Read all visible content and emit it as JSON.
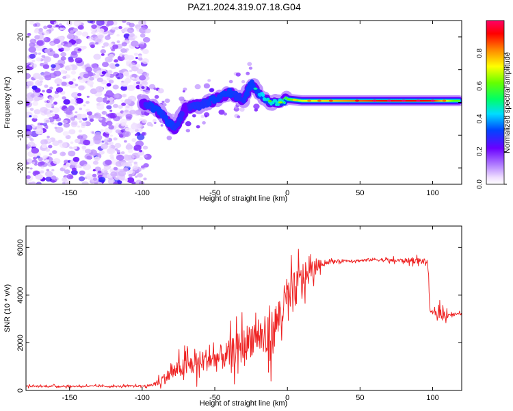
{
  "page_title": "PAZ1.2024.319.07.18.G04",
  "chart_data": [
    {
      "type": "heatmap",
      "title": "PAZ1.2024.319.07.18.G04",
      "xlabel": "Height of straight line (km)",
      "ylabel": "Frequency (Hz)",
      "xlim": [
        -180,
        120
      ],
      "ylim": [
        -25,
        25
      ],
      "x_ticks": [
        -150,
        -100,
        -50,
        0,
        50,
        100
      ],
      "y_ticks": [
        -20,
        -10,
        0,
        10,
        20
      ],
      "grid": false,
      "colorbar": {
        "label": "Normalized spectral amplitude",
        "range": [
          0,
          1
        ],
        "ticks": [
          "0.0",
          "0.2",
          "0.4",
          "0.6",
          "0.8"
        ],
        "colormap": "rainbow"
      },
      "ridge": {
        "x": [
          -100,
          -95,
          -90,
          -85,
          -80,
          -78,
          -75,
          -70,
          -65,
          -60,
          -55,
          -50,
          -45,
          -40,
          -35,
          -30,
          -25,
          -20,
          -15,
          -10,
          -5,
          0,
          10,
          25,
          50,
          75,
          100,
          115
        ],
        "frequency": [
          0,
          -1,
          -2,
          -4,
          -7,
          -8,
          -6,
          -2,
          -1,
          -1,
          0,
          1,
          2,
          3,
          2,
          1,
          6,
          3,
          1,
          0,
          0,
          1,
          0.5,
          0.5,
          0.5,
          0.5,
          0.5,
          0.5
        ],
        "amplitude": [
          0.25,
          0.3,
          0.35,
          0.3,
          0.35,
          0.3,
          0.3,
          0.25,
          0.3,
          0.3,
          0.3,
          0.35,
          0.35,
          0.35,
          0.3,
          0.3,
          0.35,
          0.4,
          0.45,
          0.5,
          0.55,
          0.6,
          0.7,
          0.75,
          0.85,
          0.95,
          0.9,
          0.6
        ]
      },
      "noise_region_x": [
        -180,
        -100
      ],
      "noise_dominant_amplitude": 0.05
    },
    {
      "type": "line",
      "xlabel": "Height of straight line (km)",
      "ylabel": "SNR (10 * v/v)",
      "xlim": [
        -180,
        120
      ],
      "ylim": [
        0,
        6900
      ],
      "x_ticks": [
        -150,
        -100,
        -50,
        0,
        50,
        100
      ],
      "y_ticks": [
        0,
        2000,
        4000,
        6000
      ],
      "grid": false,
      "series": [
        {
          "color": "#ee2222",
          "x": [
            -180,
            -170,
            -160,
            -150,
            -140,
            -130,
            -120,
            -110,
            -100,
            -95,
            -90,
            -85,
            -80,
            -75,
            -70,
            -65,
            -60,
            -55,
            -50,
            -45,
            -40,
            -35,
            -30,
            -25,
            -20,
            -15,
            -10,
            -5,
            0,
            5,
            10,
            15,
            20,
            25,
            30,
            40,
            50,
            60,
            70,
            80,
            90,
            95,
            97,
            98,
            100,
            105,
            110,
            115,
            120
          ],
          "y": [
            180,
            170,
            180,
            170,
            180,
            175,
            170,
            180,
            190,
            200,
            300,
            500,
            700,
            900,
            1000,
            1100,
            1200,
            1300,
            1300,
            1400,
            1500,
            1700,
            1900,
            2200,
            2400,
            2000,
            2500,
            3200,
            3800,
            4200,
            4700,
            4900,
            5200,
            5350,
            5400,
            5450,
            5450,
            5500,
            5450,
            5450,
            5450,
            5400,
            5300,
            3300,
            3250,
            3250,
            3200,
            3200,
            3200
          ],
          "noise_amplitude": [
            60,
            60,
            60,
            60,
            60,
            60,
            60,
            60,
            60,
            80,
            200,
            400,
            500,
            600,
            700,
            800,
            800,
            800,
            900,
            900,
            1000,
            1100,
            1200,
            1300,
            1400,
            1500,
            1600,
            1500,
            1500,
            1300,
            1200,
            700,
            500,
            150,
            120,
            100,
            100,
            110,
            120,
            150,
            200,
            200,
            200,
            100,
            100,
            400,
            300,
            100,
            100
          ]
        }
      ]
    }
  ]
}
